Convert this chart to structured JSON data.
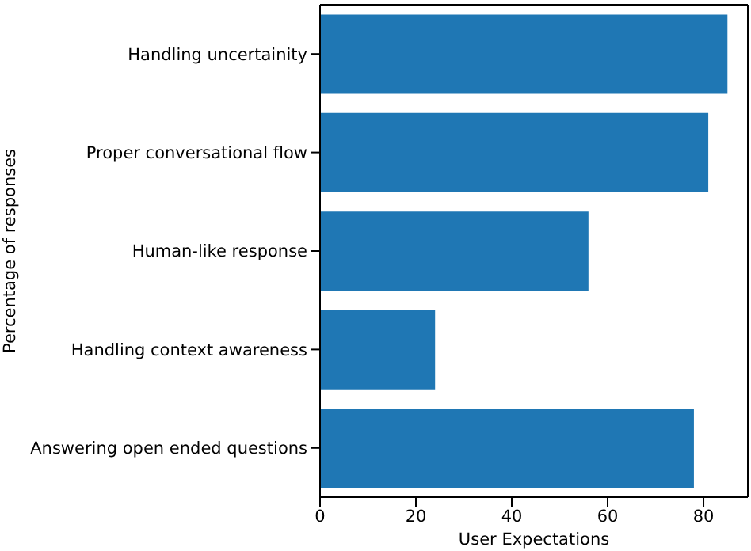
{
  "chart_data": {
    "type": "bar",
    "orientation": "horizontal",
    "xlabel": "User Expectations",
    "ylabel": "Percentage of responses",
    "categories": [
      "Handling uncertainity",
      "Proper conversational flow",
      "Human-like response",
      "Handling context awareness",
      "Answering open ended questions"
    ],
    "values": [
      85,
      81,
      56,
      24,
      78
    ],
    "color": "#1f77b4",
    "xlim": [
      0,
      89.25
    ],
    "xticks": [
      0,
      20,
      40,
      60,
      80
    ],
    "grid": false,
    "legend": false
  }
}
